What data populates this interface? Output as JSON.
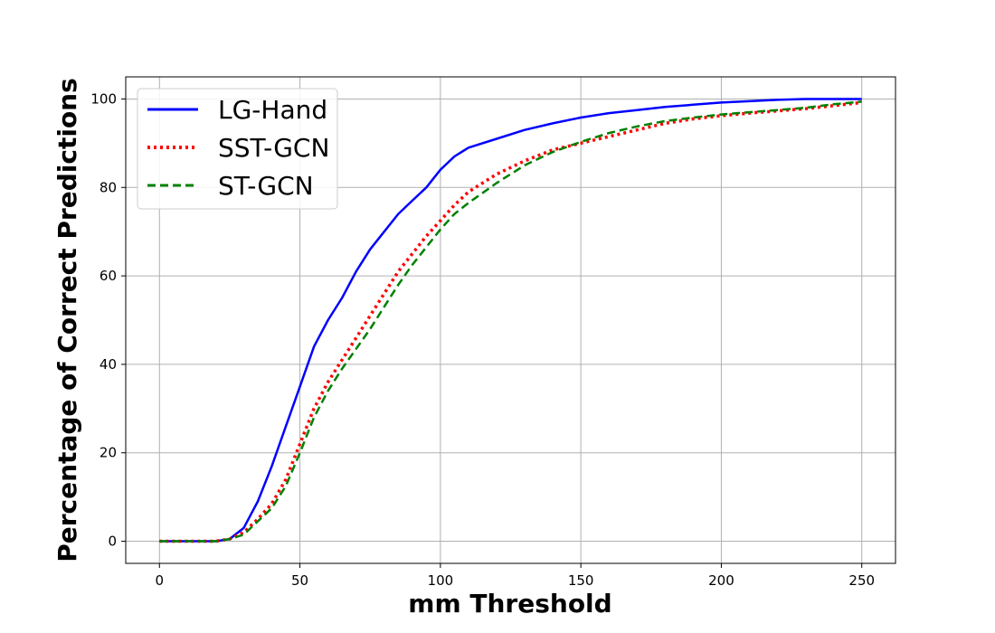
{
  "chart_data": {
    "type": "line",
    "title": "",
    "xlabel": "mm Threshold",
    "ylabel": "Percentage of Correct Predictions",
    "xlim": [
      -12,
      262
    ],
    "ylim": [
      -5,
      105
    ],
    "xticks": [
      0,
      50,
      100,
      150,
      200,
      250
    ],
    "yticks": [
      0,
      20,
      40,
      60,
      80,
      100
    ],
    "grid": true,
    "legend": "upper-left",
    "series": [
      {
        "name": "LG-Hand",
        "color": "#0000ff",
        "style": "solid",
        "x": [
          0,
          10,
          20,
          25,
          30,
          35,
          40,
          45,
          50,
          55,
          60,
          65,
          70,
          75,
          80,
          85,
          90,
          95,
          100,
          105,
          110,
          120,
          130,
          140,
          150,
          160,
          170,
          180,
          190,
          200,
          210,
          220,
          230,
          240,
          250
        ],
        "y": [
          0,
          0,
          0,
          0.5,
          3,
          9,
          17,
          26,
          35,
          44,
          50,
          55,
          61,
          66,
          70,
          74,
          77,
          80,
          84,
          87,
          89,
          91,
          93,
          94.5,
          95.8,
          96.8,
          97.5,
          98.2,
          98.7,
          99.2,
          99.5,
          99.8,
          100,
          100,
          100
        ]
      },
      {
        "name": "SST-GCN",
        "color": "#ff0000",
        "style": "dotted",
        "x": [
          0,
          10,
          20,
          25,
          30,
          35,
          40,
          45,
          50,
          55,
          60,
          65,
          70,
          75,
          80,
          85,
          90,
          95,
          100,
          105,
          110,
          120,
          130,
          140,
          150,
          160,
          170,
          180,
          190,
          200,
          210,
          220,
          230,
          240,
          250
        ],
        "y": [
          0,
          0,
          0,
          0.5,
          2,
          5,
          8.5,
          14,
          22,
          30,
          36,
          41,
          46,
          51,
          56,
          61,
          65,
          69,
          72.5,
          76,
          79,
          83,
          86,
          88.5,
          90,
          91.5,
          93,
          94.5,
          95.5,
          96.2,
          96.8,
          97.3,
          97.8,
          98.5,
          99.2
        ]
      },
      {
        "name": "ST-GCN",
        "color": "#008000",
        "style": "dashed",
        "x": [
          0,
          10,
          20,
          25,
          30,
          35,
          40,
          45,
          50,
          55,
          60,
          65,
          70,
          75,
          80,
          85,
          90,
          95,
          100,
          105,
          110,
          120,
          130,
          140,
          150,
          160,
          170,
          180,
          190,
          200,
          210,
          220,
          230,
          240,
          250
        ],
        "y": [
          0,
          0,
          0,
          0.5,
          1.5,
          4.5,
          7.5,
          12.5,
          20,
          28,
          34,
          39,
          43.5,
          48,
          53,
          58,
          62.5,
          66.5,
          70.5,
          74,
          76.5,
          81,
          85,
          88,
          90.3,
          92.3,
          93.8,
          95,
          95.8,
          96.5,
          97,
          97.5,
          98,
          98.8,
          99.4
        ]
      }
    ]
  }
}
